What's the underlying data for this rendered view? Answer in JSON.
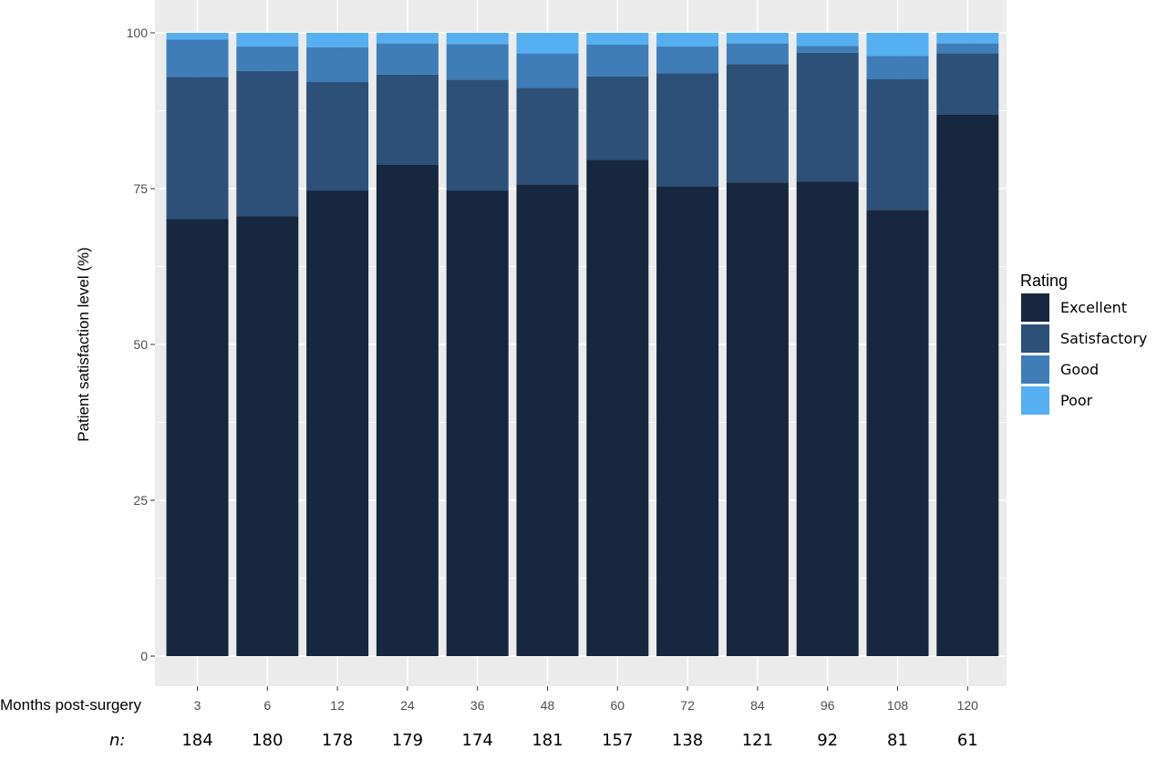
{
  "chart_data": {
    "type": "bar",
    "stacked": true,
    "categories": [
      "3",
      "6",
      "12",
      "24",
      "36",
      "48",
      "60",
      "72",
      "84",
      "96",
      "108",
      "120"
    ],
    "n_label": "n:",
    "n_values": [
      "184",
      "180",
      "178",
      "179",
      "174",
      "181",
      "157",
      "138",
      "121",
      "92",
      "81",
      "61"
    ],
    "series": [
      {
        "name": "Excellent",
        "color": "#16273f",
        "values": [
          70.1,
          70.6,
          74.7,
          78.8,
          74.7,
          75.7,
          79.6,
          75.4,
          76.0,
          76.1,
          71.6,
          86.9
        ]
      },
      {
        "name": "Satisfactory",
        "color": "#2c5078",
        "values": [
          22.8,
          23.3,
          17.4,
          14.5,
          17.8,
          15.5,
          13.4,
          18.1,
          19.0,
          20.7,
          21.0,
          9.8
        ]
      },
      {
        "name": "Good",
        "color": "#3e7db8",
        "values": [
          6.0,
          3.9,
          5.6,
          5.0,
          5.7,
          5.5,
          5.1,
          4.3,
          3.3,
          1.1,
          3.7,
          1.6
        ]
      },
      {
        "name": "Poor",
        "color": "#56aff0",
        "values": [
          1.1,
          2.2,
          2.3,
          1.7,
          1.8,
          3.3,
          1.9,
          2.2,
          1.7,
          2.1,
          3.7,
          1.7
        ]
      }
    ],
    "xlabel": "Months post-surgery",
    "ylabel": "Patient satisfaction level (%)",
    "ylim": [
      0,
      100
    ],
    "yticks": [
      "0",
      "25",
      "50",
      "75",
      "100"
    ],
    "legend_title": "Rating",
    "legend_position": "right",
    "grid": true,
    "panel_background": "#ebebeb"
  }
}
